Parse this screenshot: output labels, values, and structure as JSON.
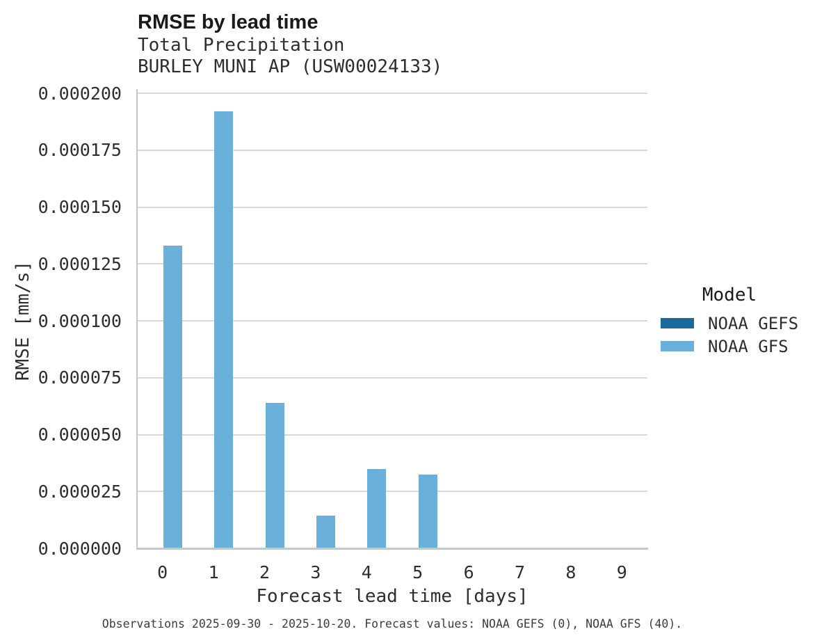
{
  "title": "RMSE by lead time",
  "subtitle_lines": [
    "Total Precipitation",
    "BURLEY MUNI AP (USW00024133)"
  ],
  "footer": "Observations 2025-09-30 - 2025-10-20. Forecast values: NOAA GEFS (0), NOAA GFS (40).",
  "legend": {
    "title": "Model",
    "entries": [
      {
        "label": "NOAA GEFS",
        "color": "#1b6a9c"
      },
      {
        "label": "NOAA GFS",
        "color": "#6bb0da"
      }
    ]
  },
  "colors": {
    "gridline": "#d8d8d8",
    "axis_line": "#c7c7c7",
    "text_dark": "#1a1a1a",
    "text_body": "#2e2e2e"
  },
  "chart_data": {
    "type": "bar",
    "title": "RMSE by lead time",
    "subtitle": "Total Precipitation",
    "station": "BURLEY MUNI AP (USW00024133)",
    "xlabel": "Forecast lead time [days]",
    "ylabel": "RMSE [mm/s]",
    "categories": [
      "0",
      "1",
      "2",
      "3",
      "4",
      "5",
      "6",
      "7",
      "8",
      "9"
    ],
    "series": [
      {
        "name": "NOAA GEFS",
        "color": "#1b6a9c",
        "values": [
          0,
          0,
          0,
          0,
          0,
          0,
          0,
          0,
          0,
          0
        ]
      },
      {
        "name": "NOAA GFS",
        "color": "#6bb0da",
        "values": [
          0.000133,
          0.000192,
          6.4e-05,
          1.45e-05,
          3.5e-05,
          3.25e-05,
          0,
          0,
          0,
          0
        ]
      }
    ],
    "ylim": [
      0,
      0.0002
    ],
    "yticks": [
      "0.000000",
      "0.000025",
      "0.000050",
      "0.000075",
      "0.000100",
      "0.000125",
      "0.000150",
      "0.000175",
      "0.000200"
    ],
    "grid": "horizontal-only",
    "legend_position": "right",
    "legend_title": "Model"
  }
}
